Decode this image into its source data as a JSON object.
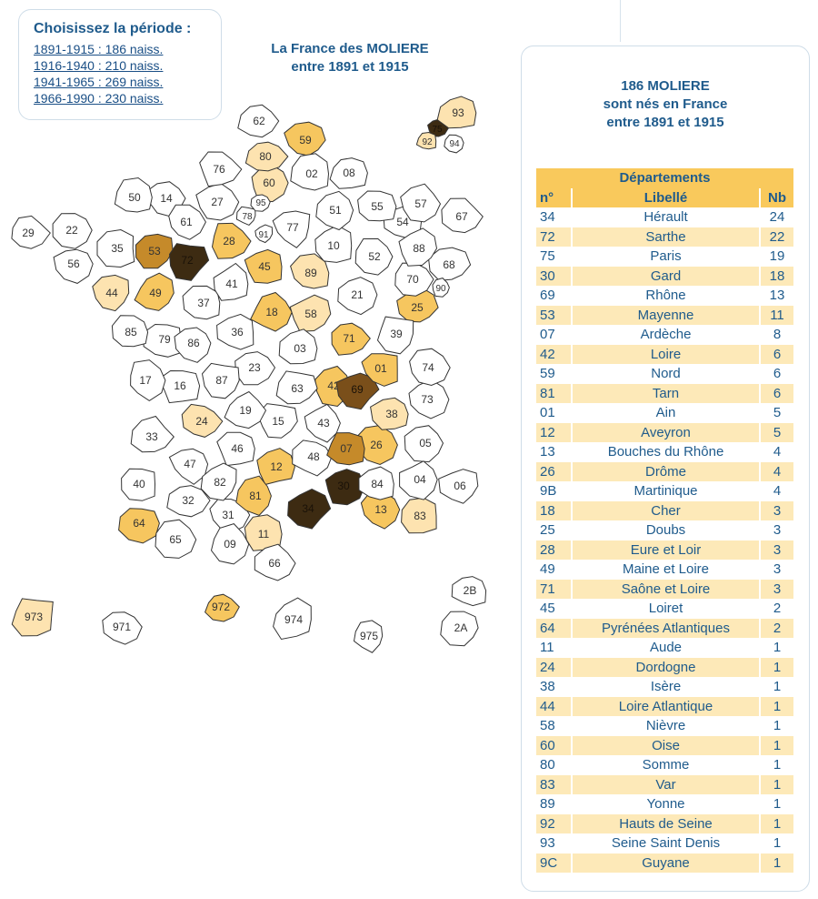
{
  "period_box": {
    "title": "Choisissez la période :",
    "links": [
      "1891-1915 : 186 naiss.",
      "1916-1940 : 210 naiss.",
      "1941-1965 : 269 naiss.",
      "1966-1990 : 230 naiss."
    ]
  },
  "map_title": {
    "line1": "La France des MOLIERE",
    "line2": "entre 1891 et 1915"
  },
  "side": {
    "line1": "186 MOLIERE",
    "line2": "sont nés en France",
    "line3": "entre 1891 et 1915",
    "table_title": "Départements",
    "col_num": "n°",
    "col_lib": "Libellé",
    "col_nb": "Nb",
    "rows": [
      [
        "34",
        "Hérault",
        "24"
      ],
      [
        "72",
        "Sarthe",
        "22"
      ],
      [
        "75",
        "Paris",
        "19"
      ],
      [
        "30",
        "Gard",
        "18"
      ],
      [
        "69",
        "Rhône",
        "13"
      ],
      [
        "53",
        "Mayenne",
        "11"
      ],
      [
        "07",
        "Ardèche",
        "8"
      ],
      [
        "42",
        "Loire",
        "6"
      ],
      [
        "59",
        "Nord",
        "6"
      ],
      [
        "81",
        "Tarn",
        "6"
      ],
      [
        "01",
        "Ain",
        "5"
      ],
      [
        "12",
        "Aveyron",
        "5"
      ],
      [
        "13",
        "Bouches du Rhône",
        "4"
      ],
      [
        "26",
        "Drôme",
        "4"
      ],
      [
        "9B",
        "Martinique",
        "4"
      ],
      [
        "18",
        "Cher",
        "3"
      ],
      [
        "25",
        "Doubs",
        "3"
      ],
      [
        "28",
        "Eure et Loir",
        "3"
      ],
      [
        "49",
        "Maine et Loire",
        "3"
      ],
      [
        "71",
        "Saône et Loire",
        "3"
      ],
      [
        "45",
        "Loiret",
        "2"
      ],
      [
        "64",
        "Pyrénées Atlantiques",
        "2"
      ],
      [
        "11",
        "Aude",
        "1"
      ],
      [
        "24",
        "Dordogne",
        "1"
      ],
      [
        "38",
        "Isère",
        "1"
      ],
      [
        "44",
        "Loire Atlantique",
        "1"
      ],
      [
        "58",
        "Nièvre",
        "1"
      ],
      [
        "60",
        "Oise",
        "1"
      ],
      [
        "80",
        "Somme",
        "1"
      ],
      [
        "83",
        "Var",
        "1"
      ],
      [
        "89",
        "Yonne",
        "1"
      ],
      [
        "92",
        "Hauts de Seine",
        "1"
      ],
      [
        "93",
        "Seine Saint Denis",
        "1"
      ],
      [
        "9C",
        "Guyane",
        "1"
      ]
    ]
  },
  "colors": {
    "none": "#ffffff",
    "low": "#fde3b0",
    "mid": "#f6c65f",
    "high": "#c58a2a",
    "vhigh": "#7a4f1a",
    "max": "#3d2b12",
    "stroke": "#333333"
  },
  "departments": {
    "62": 0,
    "59": 6,
    "80": 1,
    "02": 0,
    "08": 0,
    "76": 0,
    "60": 1,
    "27": 0,
    "14": 0,
    "50": 0,
    "95": 0,
    "78": 0,
    "91": 0,
    "77": 0,
    "51": 0,
    "55": 0,
    "54": 0,
    "57": 0,
    "67": 0,
    "29": 0,
    "22": 0,
    "56": 0,
    "35": 0,
    "61": 0,
    "53": 11,
    "72": 22,
    "28": 3,
    "45": 2,
    "10": 0,
    "52": 0,
    "88": 0,
    "68": 0,
    "90": 0,
    "70": 0,
    "25": 3,
    "89": 1,
    "21": 0,
    "44": 1,
    "49": 3,
    "37": 0,
    "41": 0,
    "18": 3,
    "58": 1,
    "71": 3,
    "39": 0,
    "85": 0,
    "79": 0,
    "86": 0,
    "36": 0,
    "03": 0,
    "01": 5,
    "74": 0,
    "73": 0,
    "69": 13,
    "42": 6,
    "17": 0,
    "16": 0,
    "87": 0,
    "23": 0,
    "63": 0,
    "38": 1,
    "24": 1,
    "19": 0,
    "15": 0,
    "43": 0,
    "07": 8,
    "26": 4,
    "05": 0,
    "33": 0,
    "47": 0,
    "46": 0,
    "12": 5,
    "48": 0,
    "04": 0,
    "06": 0,
    "40": 0,
    "82": 0,
    "81": 6,
    "30": 18,
    "84": 0,
    "13": 4,
    "83": 1,
    "32": 0,
    "31": 0,
    "34": 24,
    "64": 2,
    "65": 0,
    "09": 0,
    "11": 1,
    "66": 0,
    "75": 19,
    "92": 1,
    "93": 1,
    "94": 0,
    "973": 1,
    "971": 0,
    "972": 4,
    "974": 0,
    "975": 0,
    "2B": 0,
    "2A": 0
  }
}
